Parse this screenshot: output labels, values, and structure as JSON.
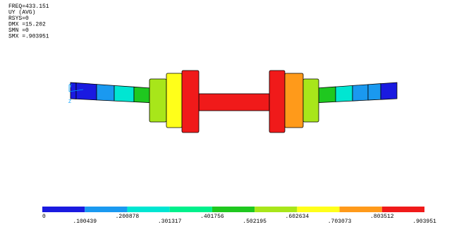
{
  "info": {
    "lines": [
      "FREQ=433.151",
      "UY         (AVG)",
      "RSYS=0",
      "DMX =15.202",
      "SMN =0",
      "SMX =.903951"
    ]
  },
  "triad": {
    "y": "Y",
    "z": "Z"
  },
  "legend": {
    "labels": [
      "0",
      ".100439",
      ".200878",
      ".301317",
      ".401756",
      ".502195",
      ".602634",
      ".703073",
      ".803512",
      ".903951"
    ],
    "colors": [
      "#1a1ae0",
      "#1a99f0",
      "#00e6d2",
      "#00f08c",
      "#1fc81f",
      "#a8e61a",
      "#ffff1a",
      "#ff9a1a",
      "#f01a1a"
    ]
  }
}
